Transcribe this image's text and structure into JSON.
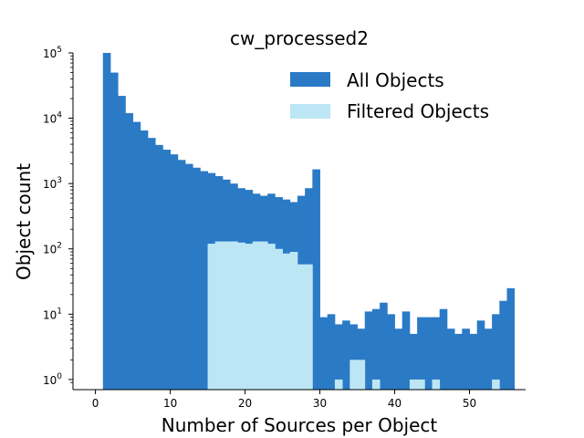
{
  "chart_data": {
    "type": "bar",
    "title": "cw_processed2",
    "xlabel": "Number of Sources per Object",
    "ylabel": "Object count",
    "yscale": "log",
    "xlim": [
      -3,
      57.5
    ],
    "ylim": [
      0.7,
      100000
    ],
    "bin_width": 1,
    "x_ticks": [
      0,
      10,
      20,
      30,
      40,
      50
    ],
    "y_ticks": [
      {
        "value": 1,
        "base": "10",
        "exp": "0"
      },
      {
        "value": 10,
        "base": "10",
        "exp": "1"
      },
      {
        "value": 100,
        "base": "10",
        "exp": "2"
      },
      {
        "value": 1000,
        "base": "10",
        "exp": "3"
      },
      {
        "value": 10000,
        "base": "10",
        "exp": "4"
      },
      {
        "value": 100000,
        "base": "10",
        "exp": "5"
      }
    ],
    "legend_position": "top-right",
    "series": [
      {
        "name": "All Objects",
        "color": "#2a7ac6",
        "bins": [
          [
            1,
            100000
          ],
          [
            2,
            50000
          ],
          [
            3,
            22000
          ],
          [
            4,
            12000
          ],
          [
            5,
            8800
          ],
          [
            6,
            6500
          ],
          [
            7,
            5000
          ],
          [
            8,
            3900
          ],
          [
            9,
            3300
          ],
          [
            10,
            2800
          ],
          [
            11,
            2300
          ],
          [
            12,
            2000
          ],
          [
            13,
            1750
          ],
          [
            14,
            1550
          ],
          [
            15,
            1450
          ],
          [
            16,
            1300
          ],
          [
            17,
            1150
          ],
          [
            18,
            1000
          ],
          [
            19,
            850
          ],
          [
            20,
            800
          ],
          [
            21,
            700
          ],
          [
            22,
            650
          ],
          [
            23,
            700
          ],
          [
            24,
            620
          ],
          [
            25,
            570
          ],
          [
            26,
            520
          ],
          [
            27,
            650
          ],
          [
            28,
            850
          ],
          [
            29,
            1650
          ],
          [
            30,
            9
          ],
          [
            31,
            10
          ],
          [
            32,
            7
          ],
          [
            33,
            8
          ],
          [
            34,
            7
          ],
          [
            35,
            6
          ],
          [
            36,
            11
          ],
          [
            37,
            12
          ],
          [
            38,
            15
          ],
          [
            39,
            10
          ],
          [
            40,
            6
          ],
          [
            41,
            11
          ],
          [
            42,
            5
          ],
          [
            43,
            9
          ],
          [
            44,
            9
          ],
          [
            45,
            9
          ],
          [
            46,
            12
          ],
          [
            47,
            6
          ],
          [
            48,
            5
          ],
          [
            49,
            6
          ],
          [
            50,
            5
          ],
          [
            51,
            8
          ],
          [
            52,
            6
          ],
          [
            53,
            10
          ],
          [
            54,
            16
          ],
          [
            55,
            25
          ]
        ]
      },
      {
        "name": "Filtered Objects",
        "color": "#bde6f5",
        "bins": [
          [
            15,
            120
          ],
          [
            16,
            130
          ],
          [
            17,
            130
          ],
          [
            18,
            130
          ],
          [
            19,
            125
          ],
          [
            20,
            120
          ],
          [
            21,
            130
          ],
          [
            22,
            130
          ],
          [
            23,
            120
          ],
          [
            24,
            100
          ],
          [
            25,
            85
          ],
          [
            26,
            90
          ],
          [
            27,
            58
          ],
          [
            28,
            58
          ],
          [
            32,
            1
          ],
          [
            34,
            2
          ],
          [
            35,
            2
          ],
          [
            37,
            1
          ],
          [
            42,
            1
          ],
          [
            43,
            1
          ],
          [
            45,
            1
          ],
          [
            53,
            1
          ]
        ]
      }
    ]
  }
}
